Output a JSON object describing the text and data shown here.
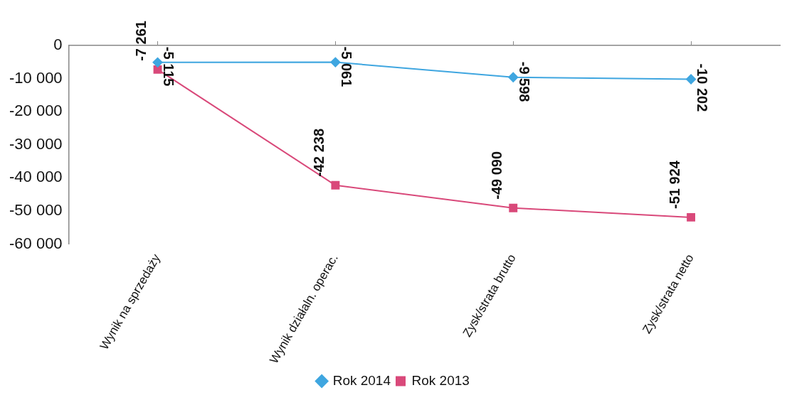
{
  "chart_data": {
    "type": "line",
    "categories": [
      "Wynik na sprzedaży",
      "Wynik działaln. operac.",
      "Zysk/strata brutto",
      "Zysk/strata netto"
    ],
    "series": [
      {
        "name": "Rok 2014",
        "color": "#3fa6e0",
        "marker": "diamond",
        "values": [
          -5115,
          -5061,
          -9598,
          -10202
        ],
        "value_labels": [
          "-5 115",
          "-5 061",
          "-9 598",
          "-10 202"
        ]
      },
      {
        "name": "Rok 2013",
        "color": "#d9497a",
        "marker": "square",
        "values": [
          -7261,
          -42238,
          -49090,
          -51924
        ],
        "value_labels": [
          "-7 261",
          "-42 238",
          "-49 090",
          "-51 924"
        ]
      }
    ],
    "ylim": [
      -60000,
      0
    ],
    "yticks": [
      {
        "value": 0,
        "label": "0"
      },
      {
        "value": -10000,
        "label": "-10 000"
      },
      {
        "value": -20000,
        "label": "-20 000"
      },
      {
        "value": -30000,
        "label": "-30 000"
      },
      {
        "value": -40000,
        "label": "-40 000"
      },
      {
        "value": -50000,
        "label": "-50 000"
      },
      {
        "value": -60000,
        "label": "-60 000"
      }
    ],
    "grid": false,
    "legend": "bottom"
  }
}
